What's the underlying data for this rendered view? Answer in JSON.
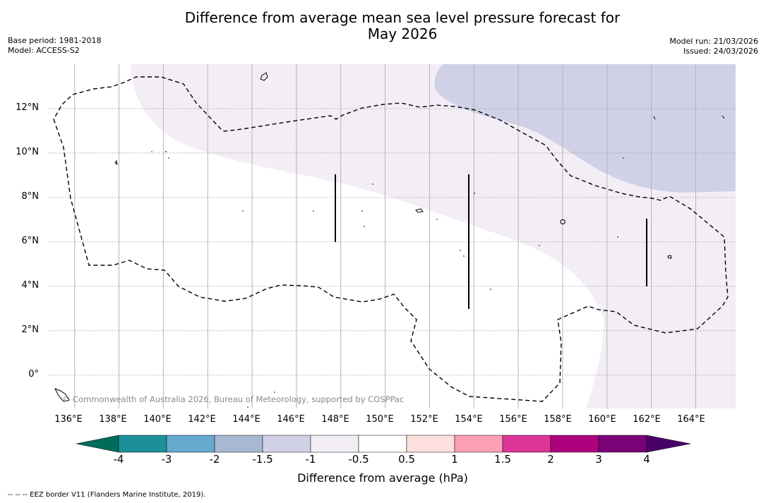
{
  "title": {
    "line1": "Difference from average mean sea level pressure forecast for",
    "line2": "May 2026"
  },
  "meta": {
    "base_period": "Base period: 1981-2018",
    "model": "Model: ACCESS-S2",
    "model_run": "Model run: 21/03/2026",
    "issued": "Issued: 24/03/2026"
  },
  "map": {
    "lat_range": [
      -1.5,
      14
    ],
    "lon_range": [
      134.8,
      165.8
    ],
    "lat_ticks": [
      "12°N",
      "10°N",
      "8°N",
      "6°N",
      "4°N",
      "2°N",
      "0°"
    ],
    "lat_tick_values": [
      12,
      10,
      8,
      6,
      4,
      2,
      0
    ],
    "lon_ticks": [
      "136°E",
      "138°E",
      "140°E",
      "142°E",
      "144°E",
      "146°E",
      "148°E",
      "150°E",
      "152°E",
      "154°E",
      "156°E",
      "158°E",
      "160°E",
      "162°E",
      "164°E"
    ],
    "lon_tick_values": [
      136,
      138,
      140,
      142,
      144,
      146,
      148,
      150,
      152,
      154,
      156,
      158,
      160,
      162,
      164
    ],
    "copyright": "© Commonwealth of Australia 2026, Bureau of Meteorology, supported by COSPPac",
    "colors": {
      "neg_0_5_to_1": "#f3edf6",
      "neg_1_to_1_5": "#d0d1e6",
      "neg_1_5_to_2": "#a6b8d2",
      "neg_2_to_3": "#67a9cf",
      "neg_3_to_4": "#1f9197",
      "neutral": "#ffffff"
    }
  },
  "colorbar": {
    "labels": [
      "-4",
      "-3",
      "-2",
      "-1.5",
      "-1",
      "-0.5",
      "0.5",
      "1",
      "1.5",
      "2",
      "3",
      "4"
    ],
    "colors": [
      "#1c9099",
      "#67a9cf",
      "#a6b8d2",
      "#d0d1e6",
      "#f3edf6",
      "#ffffff",
      "#fde0dd",
      "#fa9fb5",
      "#dd3497",
      "#ae017e",
      "#7a0177"
    ],
    "under_color": "#016c59",
    "over_color": "#49006a",
    "title": "Difference from average (hPa)"
  },
  "footnote": "--  --  -- EEZ border V11 (Flanders Marine Institute, 2019)."
}
